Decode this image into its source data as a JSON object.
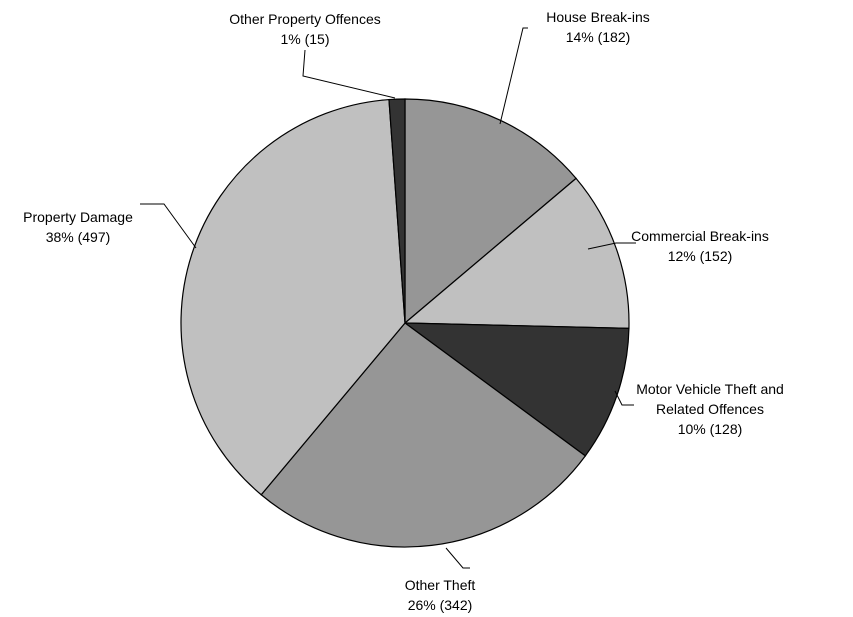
{
  "chart_data": {
    "type": "pie",
    "start_angle_deg": 0,
    "direction": "clockwise",
    "slices": [
      {
        "name": "House Break-ins",
        "percent_label": "14% (182)",
        "value": 182,
        "color": "#969696"
      },
      {
        "name": "Commercial Break-ins",
        "percent_label": "12% (152)",
        "value": 152,
        "color": "#c0c0c0"
      },
      {
        "name": "Motor Vehicle Theft and Related Offences",
        "name_lines": [
          "Motor Vehicle Theft and",
          "Related Offences"
        ],
        "percent_label": "10% (128)",
        "value": 128,
        "color": "#333333"
      },
      {
        "name": "Other Theft",
        "percent_label": "26% (342)",
        "value": 342,
        "color": "#969696"
      },
      {
        "name": "Property Damage",
        "percent_label": "38% (497)",
        "value": 497,
        "color": "#c0c0c0"
      },
      {
        "name": "Other Property Offences",
        "percent_label": "1% (15)",
        "value": 15,
        "color": "#333333"
      }
    ]
  }
}
